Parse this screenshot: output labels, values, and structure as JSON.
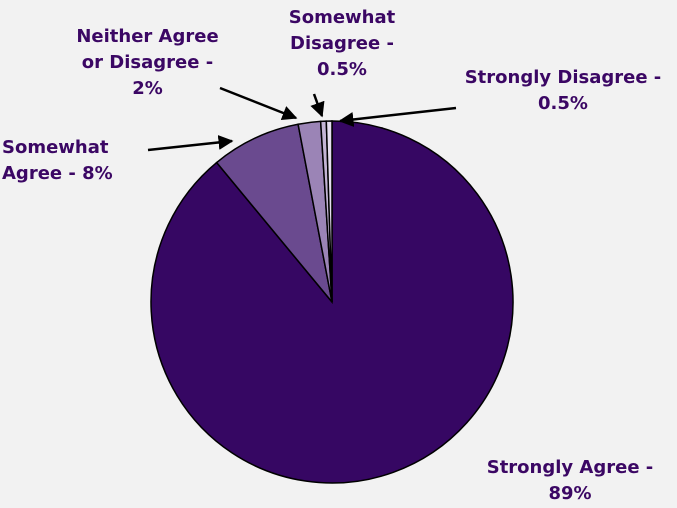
{
  "chart_data": {
    "type": "pie",
    "slices": [
      {
        "label": "Strongly Agree",
        "value": 89,
        "display_lines": [
          "Strongly Agree -",
          "89%"
        ],
        "color": "#360763"
      },
      {
        "label": "Somewhat Agree",
        "value": 8,
        "display_lines": [
          "Somewhat",
          "Agree - 8%"
        ],
        "color": "#6a4a8f"
      },
      {
        "label": "Neither Agree or Disagree",
        "value": 2,
        "display_lines": [
          "Neither Agree",
          "or Disagree -",
          "2%"
        ],
        "color": "#9b84b6"
      },
      {
        "label": "Somewhat Disagree",
        "value": 0.5,
        "display_lines": [
          "Somewhat",
          "Disagree -",
          "0.5%"
        ],
        "color": "#c3b4d4"
      },
      {
        "label": "Strongly Disagree",
        "value": 0.5,
        "display_lines": [
          "Strongly Disagree -",
          "0.5%"
        ],
        "color": "#e6def0"
      }
    ],
    "label_color": "#3b0764",
    "edge_color": "#000000",
    "background": "#f2f2f2"
  }
}
